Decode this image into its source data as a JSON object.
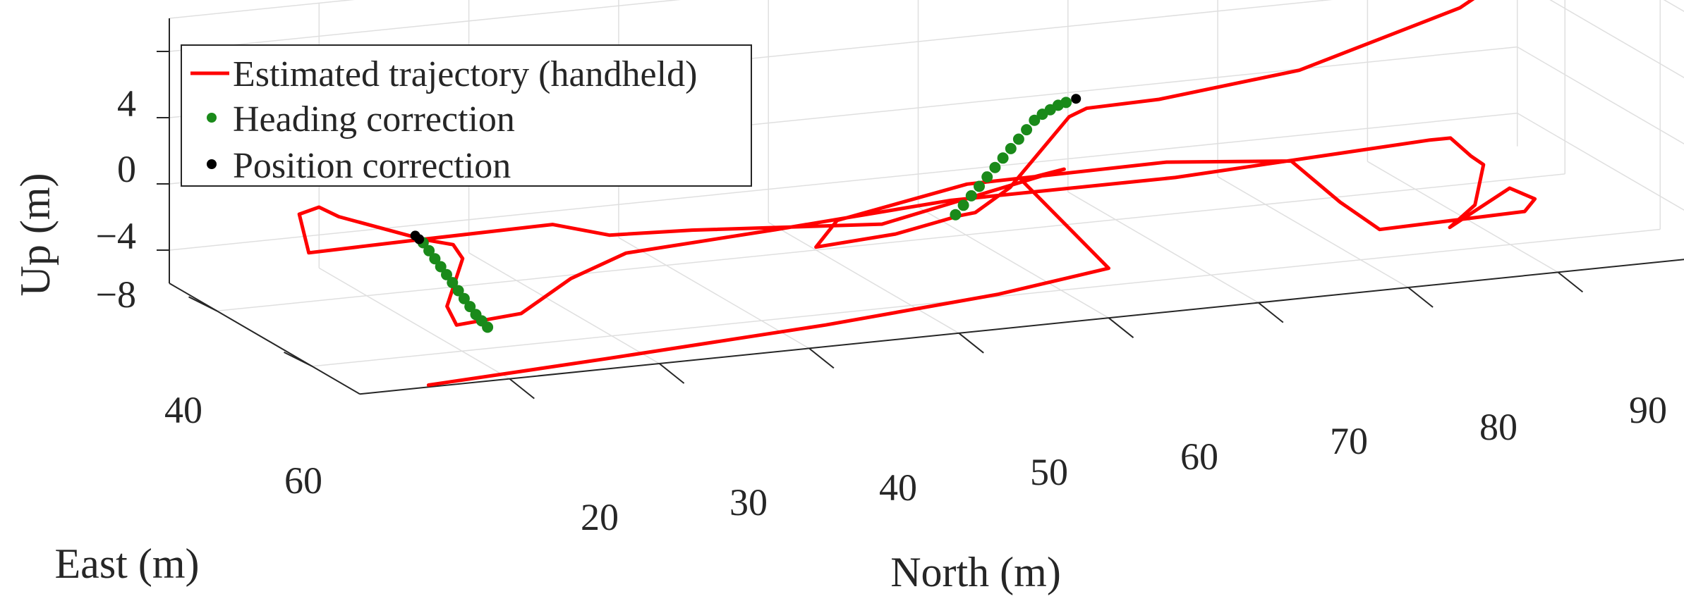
{
  "chart_data": {
    "type": "line",
    "projection": "3d",
    "xlabel": "North (m)",
    "ylabel": "East (m)",
    "zlabel": "Up (m)",
    "x_ticks": [
      "20",
      "30",
      "40",
      "50",
      "60",
      "70",
      "80",
      "90"
    ],
    "y_ticks": [
      "40",
      "60"
    ],
    "z_ticks": [
      "4",
      "0",
      "−4",
      "−8"
    ],
    "legend_position": "top-left",
    "grid": true,
    "series": [
      {
        "name": "Estimated trajectory (handheld)",
        "color": "#ff0000",
        "style": "line",
        "points": [
          [
            13,
            75,
            -8.9
          ],
          [
            25,
            74.5,
            -8.5
          ],
          [
            40,
            73.5,
            -8
          ],
          [
            52,
            72,
            -7.5
          ],
          [
            60,
            70,
            -7
          ],
          [
            58,
            58,
            -3.5
          ],
          [
            61,
            57.5,
            -3.2
          ],
          [
            49,
            57,
            -5.5
          ],
          [
            36,
            58,
            -4.5
          ],
          [
            30,
            59.5,
            -4
          ],
          [
            27,
            57,
            -3.5
          ],
          [
            18,
            55,
            -4
          ],
          [
            12,
            53,
            -4.5
          ],
          [
            12,
            51,
            -2.5
          ],
          [
            13,
            52,
            -2
          ],
          [
            14,
            53,
            -2.5
          ],
          [
            19,
            55,
            -4
          ],
          [
            21,
            55,
            -4.5
          ],
          [
            21,
            57,
            -5
          ],
          [
            19,
            60,
            -7.2
          ],
          [
            19,
            62,
            -8
          ],
          [
            23,
            63,
            -7.5
          ],
          [
            26,
            64,
            -5.5
          ],
          [
            30,
            63,
            -4.5
          ],
          [
            40,
            63,
            -4
          ],
          [
            52,
            62,
            -3.5
          ],
          [
            67,
            62,
            -3.5
          ],
          [
            84,
            62,
            -2.8
          ],
          [
            86,
            60,
            -3.2
          ],
          [
            88,
            58,
            -4.8
          ],
          [
            89,
            57.5,
            -5.5
          ],
          [
            87,
            62,
            -7
          ],
          [
            85,
            63,
            -8
          ],
          [
            89,
            63,
            -6
          ],
          [
            91,
            62,
            -7
          ],
          [
            90,
            63,
            -7.5
          ],
          [
            80,
            64,
            -7.5
          ],
          [
            78,
            62,
            -6
          ],
          [
            76,
            58,
            -4
          ],
          [
            68,
            57,
            -3.5
          ],
          [
            55,
            56,
            -3.8
          ],
          [
            46,
            57,
            -5
          ],
          [
            43,
            62,
            -5.5
          ],
          [
            48,
            63,
            -5
          ],
          [
            51,
            63,
            -4.5
          ],
          [
            52,
            63.5,
            -4.2
          ],
          [
            53,
            64,
            -4
          ],
          [
            55,
            65,
            -2.5
          ],
          [
            56,
            66,
            -1
          ],
          [
            57,
            67,
            0.5
          ],
          [
            58,
            68,
            2
          ],
          [
            59,
            68.5,
            2.5
          ],
          [
            64,
            68,
            2.5
          ],
          [
            74,
            66,
            3
          ],
          [
            80,
            64,
            4
          ],
          [
            86,
            62,
            5
          ],
          [
            90,
            59,
            6
          ],
          [
            92,
            58,
            6.5
          ]
        ]
      },
      {
        "name": "Heading correction",
        "color": "#1a8a1a",
        "style": "markers",
        "points": [
          [
            19,
            55,
            -4.2
          ],
          [
            19.2,
            55.6,
            -4.6
          ],
          [
            19.4,
            56.2,
            -5.0
          ],
          [
            19.6,
            56.8,
            -5.4
          ],
          [
            19.8,
            57.4,
            -5.8
          ],
          [
            20.0,
            58.0,
            -6.2
          ],
          [
            20.2,
            58.6,
            -6.6
          ],
          [
            20.4,
            59.2,
            -7.0
          ],
          [
            20.6,
            59.8,
            -7.4
          ],
          [
            20.8,
            60.4,
            -7.8
          ],
          [
            21.0,
            61.0,
            -8.1
          ],
          [
            21.2,
            61.6,
            -8.4
          ],
          [
            52,
            63,
            -4.2
          ],
          [
            52.4,
            63.4,
            -3.6
          ],
          [
            52.8,
            63.8,
            -3.0
          ],
          [
            53.2,
            64.2,
            -2.4
          ],
          [
            53.6,
            64.6,
            -1.8
          ],
          [
            54.0,
            65.0,
            -1.2
          ],
          [
            54.4,
            65.4,
            -0.6
          ],
          [
            54.8,
            65.8,
            0.0
          ],
          [
            55.2,
            66.2,
            0.6
          ],
          [
            55.6,
            66.6,
            1.2
          ],
          [
            56.0,
            67.0,
            1.8
          ],
          [
            56.4,
            67.4,
            2.2
          ],
          [
            56.8,
            67.8,
            2.5
          ],
          [
            57.2,
            68.2,
            2.8
          ],
          [
            57.6,
            68.6,
            3.0
          ]
        ]
      },
      {
        "name": "Position correction",
        "color": "#000000",
        "style": "markers",
        "points": [
          [
            18.6,
            54.6,
            -3.8
          ],
          [
            18.8,
            54.8,
            -4.0
          ],
          [
            58.2,
            68.8,
            3.2
          ]
        ]
      }
    ]
  }
}
